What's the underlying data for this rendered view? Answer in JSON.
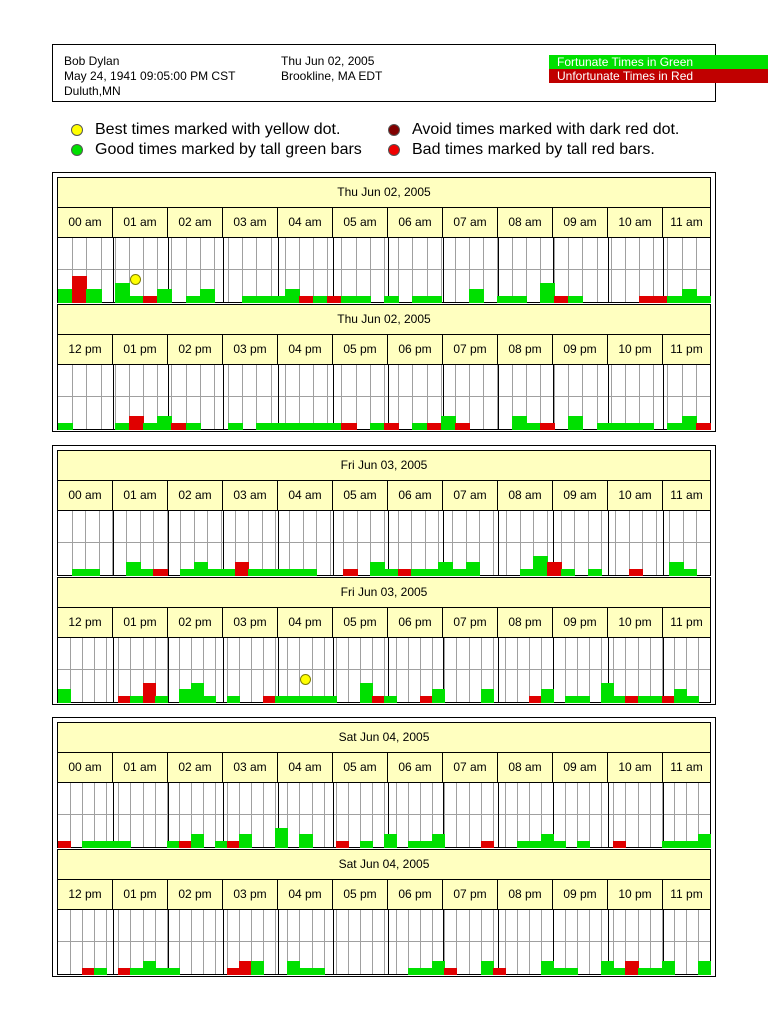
{
  "header": {
    "name": "Bob Dylan",
    "birth": "May 24, 1941 09:05:00 PM CST",
    "birthplace": "Duluth,MN",
    "date": "Thu Jun 02, 2005",
    "location": "Brookline, MA  EDT",
    "fortunate_label": "Fortunate Times in Green",
    "unfortunate_label": "Unfortunate Times in Red"
  },
  "legend": {
    "best": "Best times marked with yellow dot.",
    "good": "Good times marked by tall green bars",
    "avoid": "Avoid times marked with dark red dot.",
    "bad": "Bad times marked by tall red bars."
  },
  "colors": {
    "good": "#00e000",
    "bad": "#e00000",
    "best_dot": "#ffff00",
    "avoid_dot": "#800000",
    "strip_bg": "#ffffc0"
  },
  "am_hours": [
    "00 am",
    "01 am",
    "02 am",
    "03 am",
    "04 am",
    "05 am",
    "06 am",
    "07 am",
    "08 am",
    "09 am",
    "10 am",
    "11 am"
  ],
  "pm_hours": [
    "12 pm",
    "01 pm",
    "02 pm",
    "03 pm",
    "04 pm",
    "05 pm",
    "06 pm",
    "07 pm",
    "08 pm",
    "09 pm",
    "10 pm",
    "11 pm"
  ],
  "days": [
    {
      "date": "Thu Jun 02, 2005",
      "am": {
        "bars": [
          "g2",
          "r4",
          "g2",
          "0",
          "g3",
          "g1",
          "r1",
          "g2",
          "0",
          "g1",
          "g2",
          "0",
          "0",
          "g1",
          "g1",
          "g1",
          "g2",
          "r1",
          "g1",
          "r1",
          "g1",
          "g1",
          "0",
          "g1",
          "0",
          "g1",
          "g1",
          "0",
          "0",
          "g2",
          "0",
          "g1",
          "g1",
          "0",
          "g3",
          "r1",
          "g1",
          "0",
          "0",
          "0",
          "0",
          "r1",
          "r1",
          "g1",
          "g2",
          "g1"
        ],
        "dots": [
          {
            "slot": 5
          }
        ]
      },
      "pm": {
        "bars": [
          "g1",
          "0",
          "0",
          "0",
          "g1",
          "r2",
          "g1",
          "g2",
          "r1",
          "g1",
          "0",
          "0",
          "g1",
          "0",
          "g1",
          "g1",
          "g1",
          "g1",
          "g1",
          "g1",
          "r1",
          "0",
          "g1",
          "r1",
          "0",
          "g1",
          "r1",
          "g2",
          "r1",
          "0",
          "0",
          "0",
          "g2",
          "g1",
          "r1",
          "0",
          "g2",
          "0",
          "g1",
          "g1",
          "g1",
          "g1",
          "0",
          "g1",
          "g2",
          "r1"
        ],
        "dots": []
      }
    },
    {
      "date": "Fri Jun 03, 2005",
      "am": {
        "bars": [
          "0",
          "g1",
          "g1",
          "0",
          "0",
          "g2",
          "g1",
          "r1",
          "0",
          "g1",
          "g2",
          "g1",
          "g1",
          "r2",
          "g1",
          "g1",
          "g1",
          "g1",
          "g1",
          "0",
          "0",
          "r1",
          "0",
          "g2",
          "g1",
          "r1",
          "g1",
          "g1",
          "g2",
          "g1",
          "g2",
          "0",
          "0",
          "0",
          "g1",
          "g3",
          "r2",
          "g1",
          "0",
          "g1",
          "0",
          "0",
          "r1",
          "0",
          "0",
          "g2",
          "g1",
          "0"
        ],
        "dots": []
      },
      "pm": {
        "bars": [
          "g2",
          "0",
          "0",
          "0",
          "0",
          "r1",
          "g1",
          "r3",
          "g1",
          "0",
          "g2",
          "g3",
          "g1",
          "0",
          "g1",
          "0",
          "0",
          "r1",
          "g1",
          "g1",
          "g1",
          "g1",
          "g1",
          "0",
          "0",
          "g3",
          "r1",
          "g1",
          "0",
          "0",
          "r1",
          "g2",
          "0",
          "0",
          "0",
          "g2",
          "0",
          "0",
          "0",
          "r1",
          "g2",
          "0",
          "g1",
          "g1",
          "0",
          "g3",
          "g1",
          "r1",
          "g1",
          "g1",
          "r1",
          "g2",
          "g1",
          "0"
        ],
        "dots": [
          {
            "slot": 20
          }
        ]
      }
    },
    {
      "date": "Sat Jun 04, 2005",
      "am": {
        "bars": [
          "r1",
          "0",
          "g1",
          "g1",
          "g1",
          "g1",
          "0",
          "0",
          "0",
          "g1",
          "r1",
          "g2",
          "0",
          "g1",
          "r1",
          "g2",
          "0",
          "0",
          "g3",
          "0",
          "g2",
          "0",
          "0",
          "r1",
          "0",
          "g1",
          "0",
          "g2",
          "0",
          "g1",
          "g1",
          "g2",
          "0",
          "0",
          "0",
          "r1",
          "0",
          "0",
          "g1",
          "g1",
          "g2",
          "g1",
          "0",
          "g1",
          "0",
          "0",
          "r1",
          "0",
          "0",
          "0",
          "g1",
          "g1",
          "g1",
          "g2"
        ],
        "dots": []
      },
      "pm": {
        "bars": [
          "0",
          "0",
          "r1",
          "g1",
          "0",
          "r1",
          "g1",
          "g2",
          "g1",
          "g1",
          "0",
          "0",
          "0",
          "0",
          "r1",
          "r2",
          "g2",
          "0",
          "0",
          "g2",
          "g1",
          "g1",
          "0",
          "0",
          "0",
          "0",
          "0",
          "0",
          "0",
          "g1",
          "g1",
          "g2",
          "r1",
          "0",
          "0",
          "g2",
          "r1",
          "0",
          "0",
          "0",
          "g2",
          "g1",
          "g1",
          "0",
          "0",
          "g2",
          "g1",
          "r2",
          "g1",
          "g1",
          "g2",
          "0",
          "0",
          "g2"
        ],
        "dots": []
      }
    }
  ]
}
